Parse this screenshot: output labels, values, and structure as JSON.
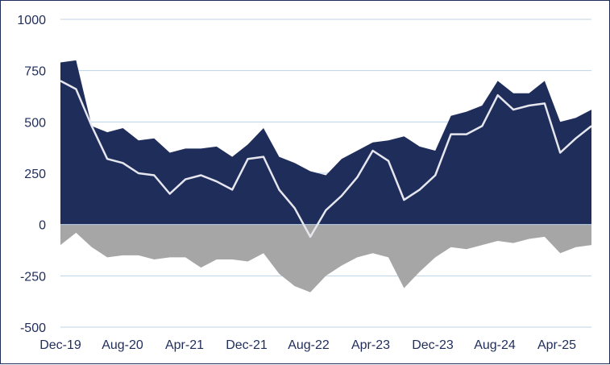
{
  "chart_data": {
    "type": "area",
    "title": "",
    "xlabel": "",
    "ylabel": "",
    "ylim": [
      -500,
      1000
    ],
    "yticks": [
      1000,
      750,
      500,
      250,
      0,
      -250,
      -500
    ],
    "xticks": [
      "Dec-19",
      "Aug-20",
      "Apr-21",
      "Dec-21",
      "Aug-22",
      "Apr-23",
      "Dec-23",
      "Aug-24",
      "Apr-25"
    ],
    "grid": true,
    "legend": "none",
    "colors": {
      "long": "#1f2d5a",
      "short": "#a6a6a6",
      "net": "#e6e6ee",
      "grid": "#bcd3ea",
      "text": "#1f2d5a"
    },
    "x": [
      "Dec-19",
      "Feb-20",
      "Apr-20",
      "Jun-20",
      "Aug-20",
      "Oct-20",
      "Dec-20",
      "Feb-21",
      "Apr-21",
      "Jun-21",
      "Aug-21",
      "Oct-21",
      "Dec-21",
      "Feb-22",
      "Apr-22",
      "Jun-22",
      "Aug-22",
      "Oct-22",
      "Dec-22",
      "Feb-23",
      "Apr-23",
      "Jun-23",
      "Aug-23",
      "Oct-23",
      "Dec-23",
      "Feb-24",
      "Apr-24",
      "Jun-24",
      "Aug-24",
      "Oct-24",
      "Dec-24",
      "Feb-25",
      "Apr-25",
      "Jun-25",
      "Aug-25"
    ],
    "series": [
      {
        "key": "long",
        "values": [
          790,
          800,
          480,
          450,
          470,
          410,
          420,
          350,
          370,
          370,
          380,
          330,
          390,
          470,
          330,
          300,
          260,
          240,
          320,
          360,
          400,
          410,
          430,
          380,
          360,
          530,
          550,
          580,
          700,
          640,
          640,
          700,
          500,
          520,
          560
        ]
      },
      {
        "key": "short",
        "values": [
          -100,
          -40,
          -110,
          -160,
          -150,
          -150,
          -170,
          -160,
          -160,
          -210,
          -170,
          -170,
          -180,
          -140,
          -240,
          -300,
          -330,
          -250,
          -200,
          -160,
          -140,
          -160,
          -310,
          -230,
          -160,
          -110,
          -120,
          -100,
          -80,
          -90,
          -70,
          -60,
          -140,
          -110,
          -100
        ]
      },
      {
        "key": "net",
        "values": [
          700,
          660,
          480,
          320,
          300,
          250,
          240,
          150,
          220,
          240,
          210,
          170,
          320,
          330,
          170,
          80,
          -60,
          70,
          140,
          230,
          360,
          310,
          120,
          170,
          240,
          440,
          440,
          480,
          630,
          560,
          580,
          590,
          350,
          420,
          480
        ]
      }
    ]
  }
}
